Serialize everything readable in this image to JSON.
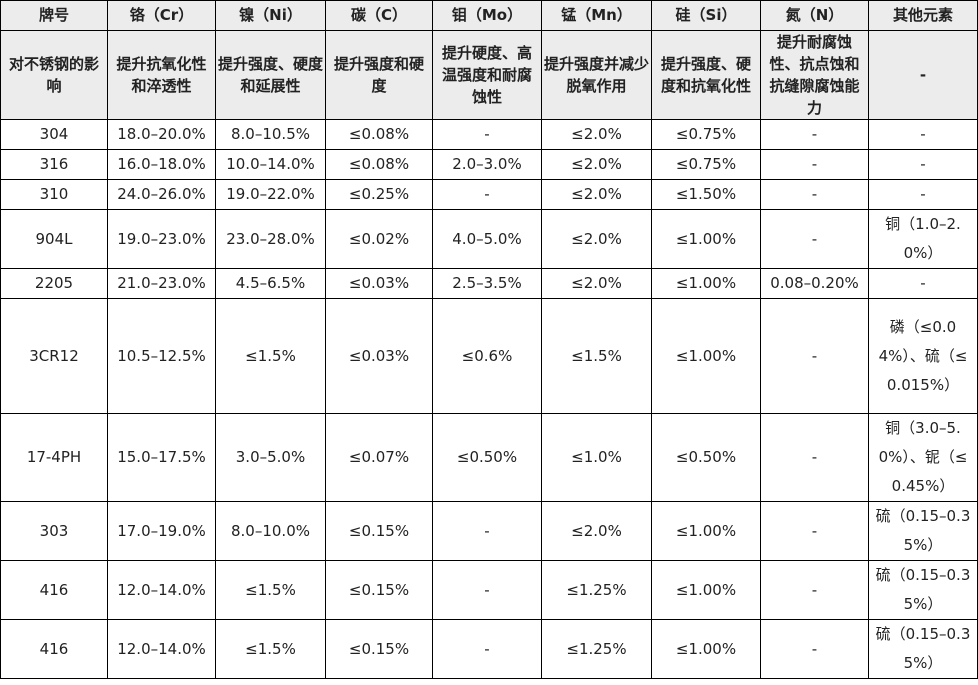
{
  "table": {
    "header": [
      "牌号",
      "铬（Cr）",
      "镍（Ni）",
      "碳（C）",
      "钼（Mo）",
      "锰（Mn）",
      "硅（Si）",
      "氮（N）",
      "其他元素"
    ],
    "effect": [
      "对不锈钢的影响",
      "提升抗氧化性和淬透性",
      "提升强度、硬度和延展性",
      "提升强度和硬度",
      "提升硬度、高温强度和耐腐蚀性",
      "提升强度并减少脱氧作用",
      "提升强度、硬度和抗氧化性",
      "提升耐腐蚀性、抗点蚀和抗缝隙腐蚀能力",
      "-"
    ],
    "rows": [
      [
        "304",
        "18.0–20.0%",
        "8.0–10.5%",
        "≤0.08%",
        "-",
        "≤2.0%",
        "≤0.75%",
        "-",
        "-"
      ],
      [
        "316",
        "16.0–18.0%",
        "10.0–14.0%",
        "≤0.08%",
        "2.0–3.0%",
        "≤2.0%",
        "≤0.75%",
        "-",
        "-"
      ],
      [
        "310",
        "24.0–26.0%",
        "19.0–22.0%",
        "≤0.25%",
        "-",
        "≤2.0%",
        "≤1.50%",
        "-",
        "-"
      ],
      [
        "904L",
        "19.0–23.0%",
        "23.0–28.0%",
        "≤0.02%",
        "4.0–5.0%",
        "≤2.0%",
        "≤1.00%",
        "-",
        "铜（1.0–2.0%）"
      ],
      [
        "2205",
        "21.0–23.0%",
        "4.5–6.5%",
        "≤0.03%",
        "2.5–3.5%",
        "≤2.0%",
        "≤1.00%",
        "0.08–0.20%",
        "-"
      ],
      [
        "3CR12",
        "10.5–12.5%",
        "≤1.5%",
        "≤0.03%",
        "≤0.6%",
        "≤1.5%",
        "≤1.00%",
        "-",
        "磷（≤0.04%）、硫（≤0.015%）"
      ],
      [
        "17-4PH",
        "15.0–17.5%",
        "3.0–5.0%",
        "≤0.07%",
        "≤0.50%",
        "≤1.0%",
        "≤0.50%",
        "-",
        "铜（3.0–5.0%）、铌（≤0.45%）"
      ],
      [
        "303",
        "17.0–19.0%",
        "8.0–10.0%",
        "≤0.15%",
        "-",
        "≤2.0%",
        "≤1.00%",
        "-",
        "硫（0.15–0.35%）"
      ],
      [
        "416",
        "12.0–14.0%",
        "≤1.5%",
        "≤0.15%",
        "-",
        "≤1.25%",
        "≤1.00%",
        "-",
        "硫（0.15–0.35%）"
      ],
      [
        "416",
        "12.0–14.0%",
        "≤1.5%",
        "≤0.15%",
        "-",
        "≤1.25%",
        "≤1.00%",
        "-",
        "硫（0.15–0.35%）"
      ]
    ]
  }
}
